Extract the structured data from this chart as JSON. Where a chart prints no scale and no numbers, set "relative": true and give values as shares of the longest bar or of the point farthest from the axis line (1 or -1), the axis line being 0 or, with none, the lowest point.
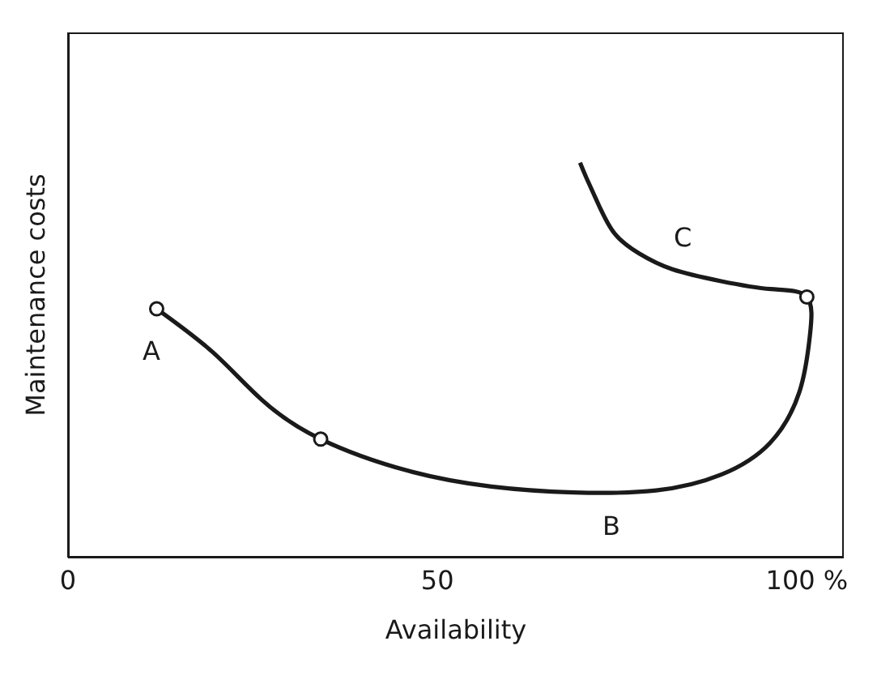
{
  "chart_data": {
    "type": "line",
    "relative": true,
    "xlabel": "Availability",
    "ylabel": "Maintenance costs",
    "xlim": [
      0,
      105
    ],
    "xticks": [
      0,
      50,
      {
        "value": 100,
        "label": "100 %"
      }
    ],
    "line_style": "solid",
    "series": [
      {
        "color": "#1a1a1a",
        "marker": "none",
        "x": [
          12,
          19.6,
          26.2,
          34.2,
          46,
          57.3,
          68.4,
          79.6,
          88.4,
          95,
          99,
          100.4,
          100,
          95.1,
          88.4,
          81.8,
          77.3,
          74,
          71.8,
          70.2,
          69.3
        ],
        "values": [
          0.63,
          0.52,
          0.4,
          0.3,
          0.22,
          0.18,
          0.165,
          0.17,
          0.21,
          0.29,
          0.42,
          0.56,
          0.66,
          0.68,
          0.7,
          0.73,
          0.77,
          0.82,
          0.894,
          0.96,
          1.0
        ]
      },
      {
        "type": "scatter",
        "color": "#1a1a1a",
        "marker": "circle",
        "x": [
          12,
          34.2,
          100
        ],
        "values": [
          0.63,
          0.3,
          0.66
        ]
      }
    ],
    "annotations": [
      "A",
      "B",
      "C"
    ]
  }
}
